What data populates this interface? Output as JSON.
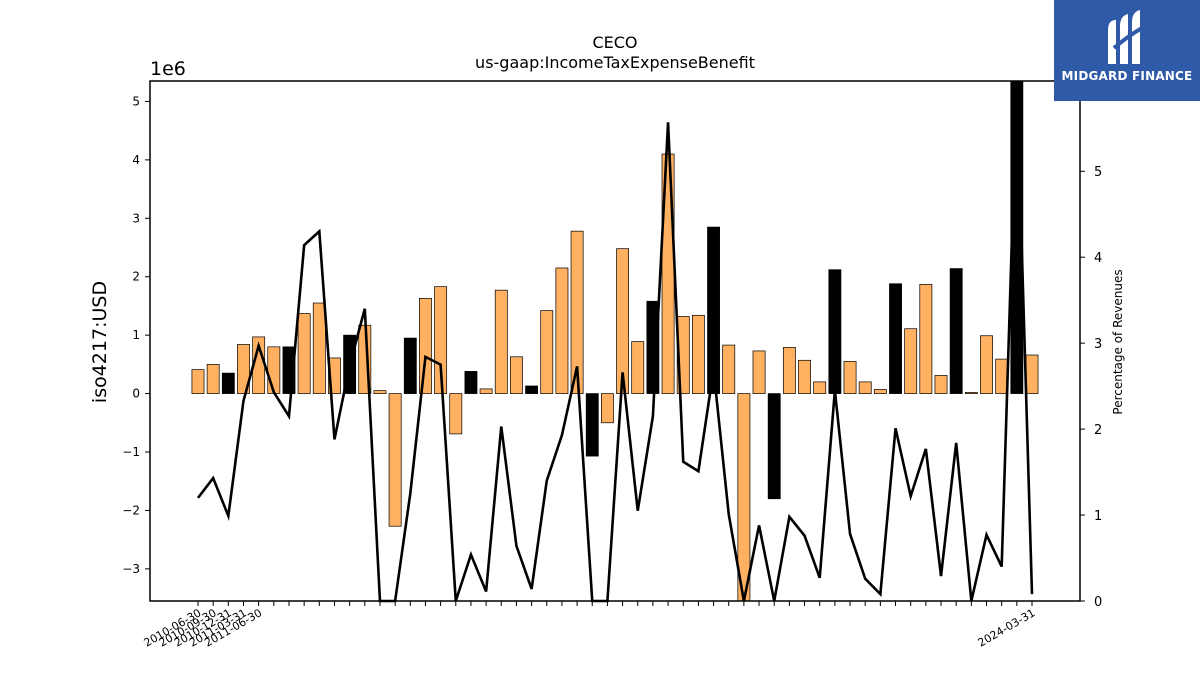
{
  "title": "CECO",
  "subtitle": "us-gaap:IncomeTaxExpenseBenefit",
  "logo": {
    "text": "MIDGARD FINANCE",
    "bg_color": "#2e5aa8"
  },
  "colors": {
    "bar_positive_change": "#ffb060",
    "bar_negative_change": "#000000",
    "line": "#000000"
  },
  "chart_data": {
    "type": "bar",
    "title": "CECO",
    "subtitle": "us-gaap:IncomeTaxExpenseBenefit",
    "left_axis": {
      "label": "iso4217:USD",
      "multiplier_label": "1e6",
      "range": [
        -3.55,
        5.35
      ],
      "ticks": [
        -3,
        -2,
        -1,
        0,
        1,
        2,
        3,
        4,
        5
      ],
      "tick_labels": [
        "−3",
        "−2",
        "−1",
        "0",
        "1",
        "2",
        "3",
        "4",
        "5"
      ]
    },
    "right_axis": {
      "label": "Percentage of Revenues",
      "range": [
        0,
        6.05
      ],
      "ticks": [
        0,
        1,
        2,
        3,
        4,
        5
      ],
      "tick_labels": [
        "0",
        "1",
        "2",
        "3",
        "4",
        "5"
      ]
    },
    "x_tick_labels": [
      "2010-06-30",
      "2010-09-30",
      "2010-12-31",
      "2011-03-31",
      "2011-06-30",
      "2024-03-31"
    ],
    "grid": false,
    "series": [
      {
        "kind": "bar",
        "axis": "left",
        "values": [
          0.41,
          0.5,
          0.35,
          0.84,
          0.97,
          0.8,
          0.8,
          1.37,
          1.55,
          0.61,
          1.0,
          1.17,
          0.05,
          -2.27,
          0.95,
          1.63,
          1.83,
          -0.69,
          0.38,
          0.08,
          1.77,
          0.63,
          0.13,
          1.42,
          2.15,
          2.78,
          -1.07,
          -0.5,
          2.48,
          0.89,
          1.58,
          4.1,
          1.32,
          1.34,
          2.85,
          0.83,
          -3.55,
          0.73,
          -1.8,
          0.79,
          0.57,
          0.2,
          2.12,
          0.55,
          0.2,
          0.07,
          1.88,
          1.11,
          1.87,
          0.31,
          2.14,
          0.02,
          0.99,
          0.59,
          5.35,
          0.66
        ],
        "highlight_black": [
          false,
          false,
          true,
          false,
          false,
          false,
          true,
          false,
          false,
          false,
          true,
          false,
          false,
          false,
          true,
          false,
          false,
          false,
          true,
          false,
          false,
          false,
          true,
          false,
          false,
          false,
          true,
          false,
          false,
          false,
          true,
          false,
          false,
          false,
          true,
          false,
          false,
          false,
          true,
          false,
          false,
          false,
          true,
          false,
          false,
          false,
          true,
          false,
          false,
          false,
          true,
          false,
          false,
          false,
          true,
          false
        ]
      },
      {
        "kind": "line",
        "axis": "right",
        "values": [
          1.2,
          1.43,
          0.99,
          2.33,
          2.97,
          2.43,
          2.15,
          4.14,
          4.3,
          1.88,
          2.74,
          3.4,
          0.0,
          0.0,
          1.25,
          2.84,
          2.75,
          0.0,
          0.54,
          0.11,
          2.03,
          0.64,
          0.14,
          1.4,
          1.93,
          2.73,
          0.0,
          0.0,
          2.66,
          1.05,
          2.15,
          5.57,
          1.62,
          1.51,
          2.69,
          1.01,
          0.0,
          0.88,
          0.0,
          0.98,
          0.76,
          0.27,
          2.45,
          0.78,
          0.26,
          0.08,
          2.01,
          1.22,
          1.77,
          0.29,
          1.84,
          0.0,
          0.77,
          0.4,
          6.05,
          0.08
        ]
      }
    ]
  }
}
